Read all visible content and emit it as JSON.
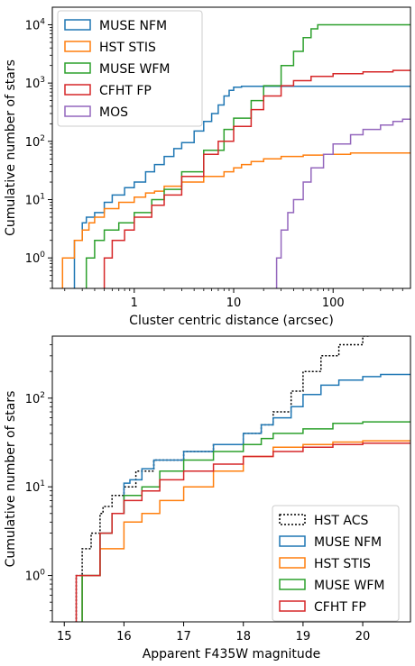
{
  "chart_data": [
    {
      "type": "step",
      "xlabel": "Cluster centric distance (arcsec)",
      "ylabel": "Cumulative number of stars",
      "xscale": "log",
      "yscale": "log",
      "xlim": [
        0.15,
        600
      ],
      "ylim": [
        0.3,
        20000
      ],
      "legend_placement": "upper-left",
      "grid": false,
      "x_ticks": [
        {
          "value": 1,
          "label": "1"
        },
        {
          "value": 10,
          "label": "10"
        },
        {
          "value": 100,
          "label": "100"
        }
      ],
      "y_ticks": [
        {
          "value": 1,
          "label": "10",
          "exp": "0"
        },
        {
          "value": 10,
          "label": "10",
          "exp": "1"
        },
        {
          "value": 100,
          "label": "10",
          "exp": "2"
        },
        {
          "value": 1000,
          "label": "10",
          "exp": "3"
        },
        {
          "value": 10000,
          "label": "10",
          "exp": "4"
        }
      ],
      "series": [
        {
          "name": "MUSE NFM",
          "color": "#1f77b4",
          "x": [
            0.25,
            0.3,
            0.33,
            0.4,
            0.5,
            0.6,
            0.8,
            1.0,
            1.3,
            1.6,
            2.0,
            2.5,
            3.0,
            4.0,
            5.0,
            6.0,
            7.0,
            8.0,
            9.0,
            10.0,
            12.0,
            600
          ],
          "y": [
            2,
            4,
            5,
            6,
            9,
            12,
            16,
            20,
            30,
            40,
            55,
            75,
            95,
            150,
            220,
            300,
            420,
            600,
            750,
            850,
            880,
            880
          ]
        },
        {
          "name": "HST STIS",
          "color": "#ff7f0e",
          "x": [
            0.19,
            0.25,
            0.3,
            0.35,
            0.4,
            0.5,
            0.7,
            1.0,
            1.3,
            1.6,
            2.0,
            3.0,
            5.0,
            8.0,
            10.0,
            12.0,
            15.0,
            20.0,
            30.0,
            50.0,
            80.0,
            150.0,
            600
          ],
          "y": [
            1,
            2,
            3,
            4,
            5,
            7,
            9,
            11,
            13,
            14,
            17,
            20,
            25,
            30,
            35,
            40,
            45,
            50,
            55,
            58,
            60,
            63,
            63
          ]
        },
        {
          "name": "MUSE WFM",
          "color": "#2ca02c",
          "x": [
            0.33,
            0.4,
            0.5,
            0.7,
            1.0,
            1.5,
            2.0,
            3.0,
            5.0,
            8.0,
            10.0,
            15.0,
            20.0,
            30.0,
            40.0,
            50.0,
            60.0,
            70.0,
            600
          ],
          "y": [
            1,
            2,
            3,
            4,
            6,
            10,
            15,
            30,
            70,
            160,
            250,
            500,
            900,
            2000,
            3500,
            6000,
            8500,
            10000,
            10000
          ]
        },
        {
          "name": "CFHT FP",
          "color": "#d62728",
          "x": [
            0.5,
            0.6,
            0.8,
            1.0,
            1.5,
            2.0,
            3.0,
            5.0,
            7.0,
            10.0,
            15.0,
            20.0,
            30.0,
            40.0,
            60.0,
            100.0,
            200.0,
            400.0,
            600
          ],
          "y": [
            1,
            2,
            3,
            5,
            8,
            12,
            25,
            60,
            100,
            180,
            350,
            600,
            900,
            1100,
            1300,
            1450,
            1550,
            1650,
            1700
          ]
        },
        {
          "name": "MOS",
          "color": "#9467bd",
          "x": [
            27,
            30,
            35,
            40,
            50,
            60,
            80,
            100,
            150,
            200,
            300,
            400,
            500,
            600
          ],
          "y": [
            1,
            3,
            6,
            10,
            20,
            35,
            60,
            90,
            130,
            160,
            190,
            220,
            240,
            240
          ]
        }
      ]
    },
    {
      "type": "step",
      "xlabel": "Apparent F435W magnitude",
      "ylabel": "Cumulative number of stars",
      "xscale": "linear",
      "yscale": "log",
      "xlim": [
        14.8,
        20.8
      ],
      "ylim": [
        0.3,
        500
      ],
      "legend_placement": "lower-right",
      "grid": false,
      "x_ticks": [
        {
          "value": 15,
          "label": "15"
        },
        {
          "value": 16,
          "label": "16"
        },
        {
          "value": 17,
          "label": "17"
        },
        {
          "value": 18,
          "label": "18"
        },
        {
          "value": 19,
          "label": "19"
        },
        {
          "value": 20,
          "label": "20"
        }
      ],
      "y_ticks": [
        {
          "value": 1,
          "label": "10",
          "exp": "0"
        },
        {
          "value": 10,
          "label": "10",
          "exp": "1"
        },
        {
          "value": 100,
          "label": "10",
          "exp": "2"
        }
      ],
      "series": [
        {
          "name": "HST ACS",
          "color": "#000000",
          "dash": true,
          "x": [
            15.2,
            15.3,
            15.45,
            15.6,
            15.65,
            15.8,
            16.0,
            16.2,
            16.5,
            17.0,
            17.5,
            18.0,
            18.3,
            18.5,
            18.8,
            19.0,
            19.3,
            19.6,
            20.0,
            20.1
          ],
          "y": [
            1,
            2,
            3,
            5,
            6,
            8,
            10,
            15,
            20,
            25,
            30,
            40,
            50,
            70,
            120,
            200,
            300,
            400,
            500,
            600
          ]
        },
        {
          "name": "MUSE NFM",
          "color": "#1f77b4",
          "x": [
            15.3,
            15.6,
            15.8,
            16.0,
            16.1,
            16.3,
            16.5,
            17.0,
            17.5,
            18.0,
            18.3,
            18.5,
            18.8,
            19.0,
            19.3,
            19.6,
            20.0,
            20.3,
            20.8
          ],
          "y": [
            1,
            3,
            5,
            11,
            12,
            16,
            20,
            25,
            30,
            40,
            50,
            60,
            80,
            110,
            140,
            160,
            175,
            185,
            185
          ]
        },
        {
          "name": "HST STIS",
          "color": "#ff7f0e",
          "x": [
            15.3,
            15.6,
            16.0,
            16.3,
            16.6,
            17.0,
            17.5,
            18.0,
            18.5,
            19.0,
            19.5,
            20.0,
            20.8
          ],
          "y": [
            1,
            2,
            4,
            5,
            7,
            10,
            15,
            22,
            28,
            30,
            32,
            33,
            33
          ]
        },
        {
          "name": "MUSE WFM",
          "color": "#2ca02c",
          "x": [
            15.3,
            15.6,
            15.8,
            16.0,
            16.3,
            16.6,
            17.0,
            17.5,
            18.0,
            18.3,
            18.5,
            19.0,
            19.5,
            20.0,
            20.8
          ],
          "y": [
            1,
            3,
            5,
            8,
            10,
            15,
            20,
            25,
            30,
            35,
            40,
            45,
            52,
            54,
            54
          ]
        },
        {
          "name": "CFHT FP",
          "color": "#d62728",
          "x": [
            15.2,
            15.6,
            15.8,
            16.0,
            16.3,
            16.6,
            17.0,
            17.5,
            18.0,
            18.5,
            19.0,
            19.5,
            20.0,
            20.8
          ],
          "y": [
            1,
            3,
            5,
            7,
            9,
            12,
            15,
            18,
            22,
            25,
            28,
            30,
            31,
            31
          ]
        }
      ]
    }
  ]
}
